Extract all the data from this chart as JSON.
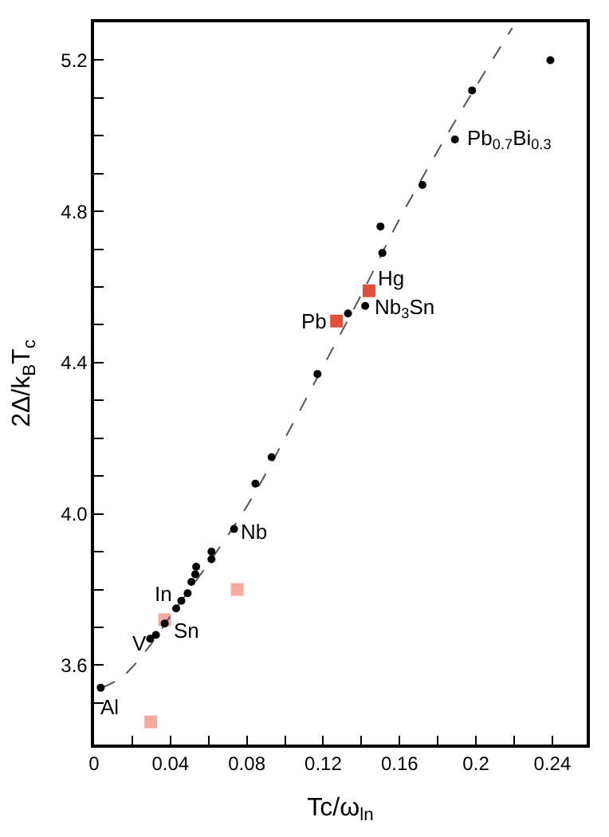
{
  "chart_data": {
    "type": "scatter",
    "xlabel": "Tc/ω$_{ln}$",
    "ylabel": "2Δ/k$_{B}$T$_{c}$",
    "xlim": [
      0,
      0.258
    ],
    "ylim": [
      3.39,
      5.3
    ],
    "xticks": [
      0,
      {
        "value": 0.02,
        "label": null
      },
      0.04,
      {
        "value": 0.06,
        "label": null
      },
      0.08,
      {
        "value": 0.1,
        "label": null
      },
      0.12,
      {
        "value": 0.14,
        "label": null
      },
      0.16,
      {
        "value": 0.18,
        "label": null
      },
      0.2,
      {
        "value": 0.22,
        "label": null
      },
      0.24
    ],
    "yticks": [
      {
        "value": 3.5,
        "label": null
      },
      3.6,
      {
        "value": 3.7,
        "label": null
      },
      {
        "value": 3.8,
        "label": null
      },
      {
        "value": 3.9,
        "label": null
      },
      {
        "value": 4.0,
        "label": "4.0"
      },
      {
        "value": 4.1,
        "label": null
      },
      {
        "value": 4.2,
        "label": null
      },
      {
        "value": 4.3,
        "label": null
      },
      4.4,
      {
        "value": 4.5,
        "label": null
      },
      {
        "value": 4.6,
        "label": null
      },
      {
        "value": 4.7,
        "label": null
      },
      4.8,
      {
        "value": 4.9,
        "label": null
      },
      {
        "value": 5.0,
        "label": null
      },
      {
        "value": 5.1,
        "label": null
      },
      5.2
    ],
    "series": [
      {
        "type": "line",
        "line_style": "dashed",
        "marker": "none",
        "color": "#555555",
        "x": [
          0.004,
          0.015,
          0.029,
          0.04,
          0.06,
          0.08,
          0.1,
          0.12,
          0.14,
          0.16,
          0.18,
          0.2,
          0.219
        ],
        "values": [
          3.54,
          3.57,
          3.65,
          3.73,
          3.87,
          4.02,
          4.2,
          4.39,
          4.58,
          4.78,
          4.96,
          5.13,
          5.285
        ]
      },
      {
        "marker": "circle",
        "color": "#000000",
        "x": [
          0.239,
          0.198,
          0.189,
          0.172,
          0.15,
          0.151,
          0.142,
          0.133,
          0.117,
          0.093,
          0.0845,
          0.0733,
          0.0615,
          0.0615,
          0.0535,
          0.053,
          0.051,
          0.049,
          0.0457,
          0.043,
          0.037,
          0.0324,
          0.0294,
          0.0035
        ],
        "values": [
          5.2,
          5.12,
          4.99,
          4.87,
          4.76,
          4.69,
          4.55,
          4.53,
          4.37,
          4.15,
          4.08,
          3.96,
          3.9,
          3.88,
          3.86,
          3.84,
          3.82,
          3.79,
          3.77,
          3.75,
          3.71,
          3.68,
          3.67,
          3.54
        ]
      },
      {
        "marker": "square",
        "colors": [
          "#e0503c",
          "#e0503c",
          "#f7a9a0",
          "#f7a9a0",
          "#f7a9a0"
        ],
        "x": [
          0.144,
          0.127,
          0.037,
          0.075,
          0.0297
        ],
        "values": [
          4.59,
          4.51,
          3.72,
          3.8,
          3.45
        ]
      }
    ],
    "annotations": [
      {
        "text": "Pb$_{0.7}$Bi$_{0.3}$",
        "x": 0.189,
        "y": 4.99
      },
      {
        "text": "Hg",
        "x": 0.144,
        "y": 4.59
      },
      {
        "text": "Nb$_{3}$Sn",
        "x": 0.142,
        "y": 4.545
      },
      {
        "text": "Pb",
        "x": 0.127,
        "y": 4.51
      },
      {
        "text": "Nb",
        "x": 0.0733,
        "y": 3.955
      },
      {
        "text": "In",
        "x": 0.0457,
        "y": 3.77
      },
      {
        "text": "Sn",
        "x": 0.037,
        "y": 3.708
      },
      {
        "text": "V",
        "x": 0.0324,
        "y": 3.675
      },
      {
        "text": "Al",
        "x": 0.0035,
        "y": 3.538
      }
    ]
  }
}
